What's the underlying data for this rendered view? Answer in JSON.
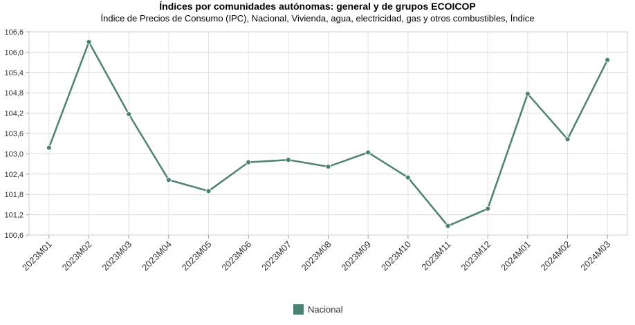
{
  "chart_data": {
    "type": "line",
    "title": "Índices por comunidades autónomas: general y de grupos ECOICOP",
    "subtitle": "Índice de Precios de Consumo (IPC), Nacional, Vivienda, agua, electricidad, gas y otros combustibles, Índice",
    "xlabel": "",
    "ylabel": "",
    "ylim": [
      100.6,
      106.6
    ],
    "yticks": [
      "100,6",
      "101,2",
      "101,8",
      "102,4",
      "103,0",
      "103,6",
      "104,2",
      "104,8",
      "105,4",
      "106,0",
      "106,6"
    ],
    "grid": true,
    "legend_position": "bottom",
    "categories": [
      "2023M01",
      "2023M02",
      "2023M03",
      "2023M04",
      "2023M05",
      "2023M06",
      "2023M07",
      "2023M08",
      "2023M09",
      "2023M10",
      "2023M11",
      "2023M12",
      "2024M01",
      "2024M02",
      "2024M03"
    ],
    "series": [
      {
        "name": "Nacional",
        "color": "#4e8176",
        "values": [
          103.18,
          106.3,
          104.17,
          102.23,
          101.9,
          102.75,
          102.82,
          102.62,
          103.04,
          102.3,
          100.87,
          101.38,
          104.77,
          103.43,
          105.77
        ]
      }
    ]
  }
}
